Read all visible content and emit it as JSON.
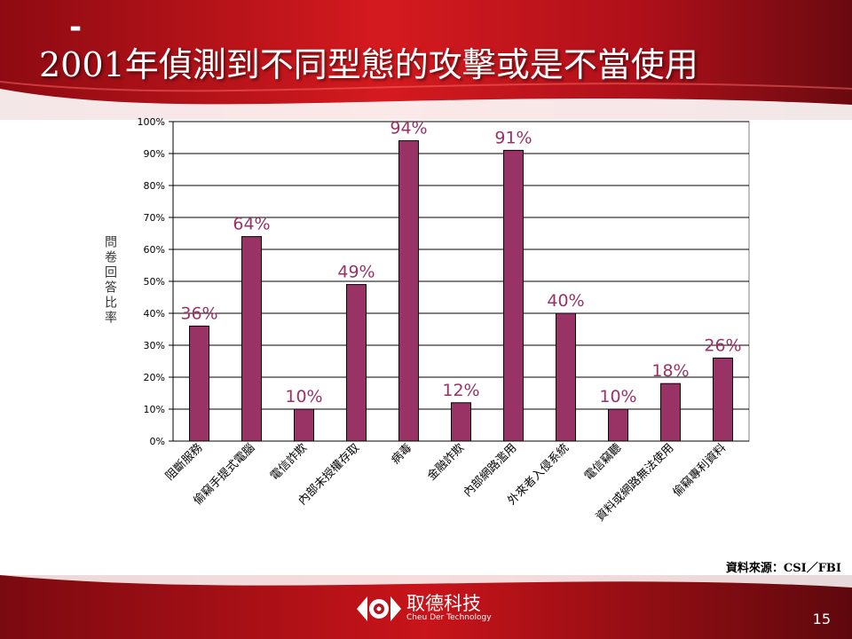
{
  "slide": {
    "title": "2001年偵測到不同型態的攻擊或是不當使用",
    "dash": "-",
    "source": "資料來源：CSI／FBI",
    "page_number": "15",
    "colors": {
      "bar": "#993366",
      "label": "#993366",
      "banner": "#c0101a"
    }
  },
  "logo": {
    "name_cn": "取德科技",
    "name_en": "Cheu Der Technology"
  },
  "chart_data": {
    "type": "bar",
    "title": "",
    "xlabel": "",
    "ylabel": "問卷回答比率",
    "ylim": [
      0,
      100
    ],
    "yticks": [
      0,
      10,
      20,
      30,
      40,
      50,
      60,
      70,
      80,
      90,
      100
    ],
    "ytick_suffix": "%",
    "grid": true,
    "categories": [
      "阻斷服務",
      "偷竊手提式電腦",
      "電信詐欺",
      "內部未授權存取",
      "病毒",
      "金融詐欺",
      "內部網路濫用",
      "外來者入侵系統",
      "電信竊聽",
      "資料或網路無法使用",
      "偷竊專利資料"
    ],
    "values": [
      36,
      64,
      10,
      49,
      94,
      12,
      91,
      40,
      10,
      18,
      26
    ],
    "data_labels": [
      "36%",
      "64%",
      "10%",
      "49%",
      "94%",
      "12%",
      "91%",
      "40%",
      "10%",
      "18%",
      "26%"
    ]
  }
}
